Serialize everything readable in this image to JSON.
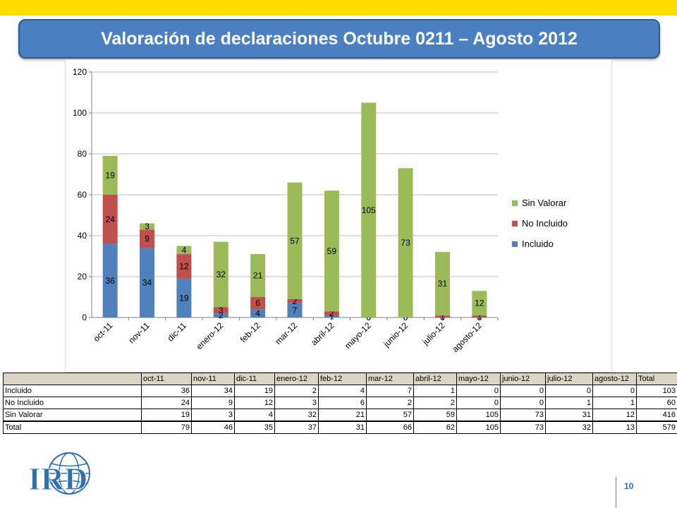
{
  "slide": {
    "title": "Valoración de declaraciones Octubre 0211 – Agosto 2012",
    "page_number": "10",
    "logo_text": "IRD"
  },
  "colors": {
    "incluido": "#4f81bd",
    "no_incluido": "#c0504d",
    "sin_valorar": "#9bbb59",
    "title_bg": "#4a7fc1",
    "topbar": "#ffdd00"
  },
  "chart_data": {
    "type": "bar",
    "stacked": true,
    "categories": [
      "oct-11",
      "nov-11",
      "dic-11",
      "enero-12",
      "feb-12",
      "mar-12",
      "abril-12",
      "mayo-12",
      "junio-12",
      "julio-12",
      "agosto-12"
    ],
    "series": [
      {
        "name": "Incluido",
        "color": "#4f81bd",
        "values": [
          36,
          34,
          19,
          2,
          4,
          7,
          1,
          0,
          0,
          0,
          0
        ]
      },
      {
        "name": "No Incluido",
        "color": "#c0504d",
        "values": [
          24,
          9,
          12,
          3,
          6,
          2,
          2,
          0,
          0,
          1,
          1
        ]
      },
      {
        "name": "Sin Valorar",
        "color": "#9bbb59",
        "values": [
          19,
          3,
          4,
          32,
          21,
          57,
          59,
          105,
          73,
          31,
          12
        ]
      }
    ],
    "ylim": [
      0,
      120
    ],
    "yticks": [
      0,
      20,
      40,
      60,
      80,
      100,
      120
    ],
    "grid": true,
    "legend": "right",
    "legend_order": [
      "Sin Valorar",
      "No Incluido",
      "Incluido"
    ]
  },
  "table": {
    "columns": [
      "oct-11",
      "nov-11",
      "dic-11",
      "enero-12",
      "feb-12",
      "mar-12",
      "abril-12",
      "mayo-12",
      "junio-12",
      "julio-12",
      "agosto-12",
      "Total"
    ],
    "rows": [
      {
        "label": "Incluido",
        "values": [
          "36",
          "34",
          "19",
          "2",
          "4",
          "7",
          "1",
          "0",
          "0",
          "0",
          "0",
          "103"
        ]
      },
      {
        "label": "No Incluido",
        "values": [
          "24",
          "9",
          "12",
          "3",
          "6",
          "2",
          "2",
          "0",
          "0",
          "1",
          "1",
          "60"
        ]
      },
      {
        "label": "Sin Valorar",
        "values": [
          "19",
          "3",
          "4",
          "32",
          "21",
          "57",
          "59",
          "105",
          "73",
          "31",
          "12",
          "416"
        ]
      }
    ],
    "total": {
      "label": "Total",
      "values": [
        "79",
        "46",
        "35",
        "37",
        "31",
        "66",
        "62",
        "105",
        "73",
        "32",
        "13",
        "579"
      ]
    }
  }
}
